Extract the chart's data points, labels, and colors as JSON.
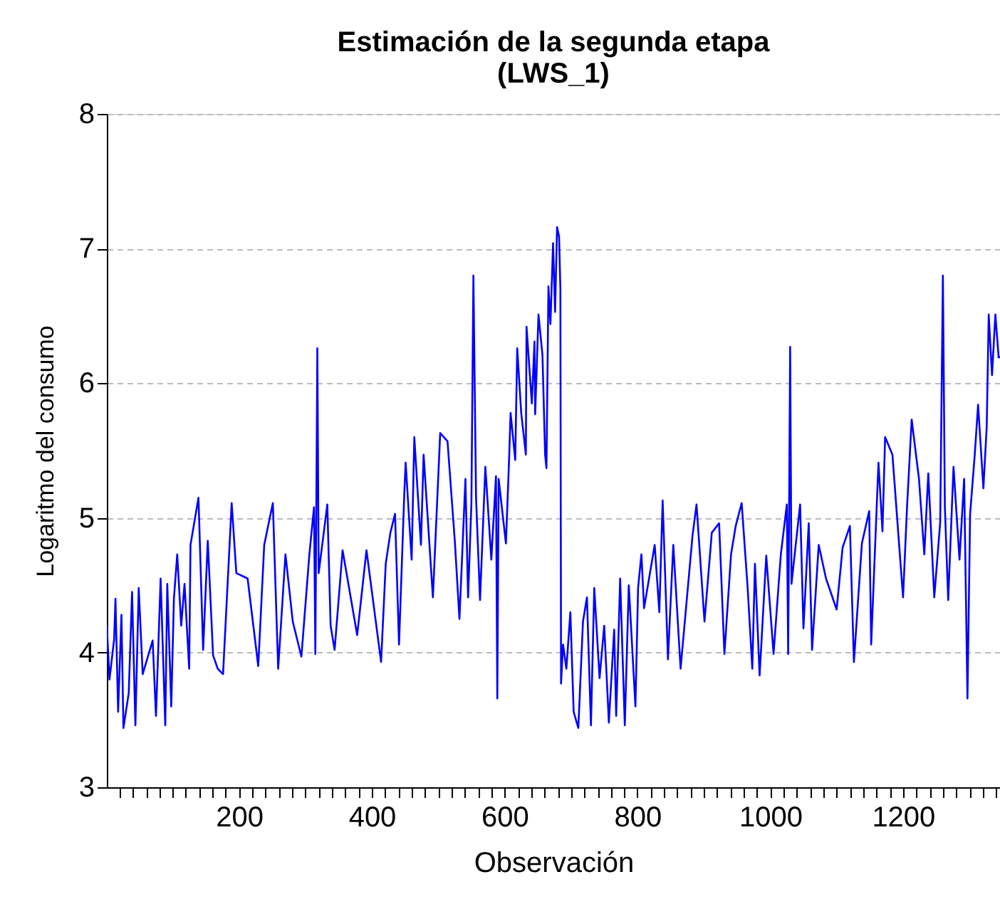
{
  "chart_data": {
    "type": "line",
    "title": "Estimación de la segunda etapa\n(LWS_1)",
    "xlabel": "Observación",
    "ylabel": "Logaritmo del consumo",
    "xlim": [
      1,
      1346
    ],
    "ylim": [
      3,
      8
    ],
    "xticks": [
      {
        "value": 20,
        "label": null
      },
      {
        "value": 40,
        "label": null
      },
      {
        "value": 60,
        "label": null
      },
      {
        "value": 80,
        "label": null
      },
      {
        "value": 100,
        "label": null
      },
      {
        "value": 120,
        "label": null
      },
      {
        "value": 140,
        "label": null
      },
      {
        "value": 160,
        "label": null
      },
      {
        "value": 180,
        "label": null
      },
      200,
      {
        "value": 220,
        "label": null
      },
      {
        "value": 240,
        "label": null
      },
      {
        "value": 260,
        "label": null
      },
      {
        "value": 280,
        "label": null
      },
      {
        "value": 300,
        "label": null
      },
      {
        "value": 320,
        "label": null
      },
      {
        "value": 340,
        "label": null
      },
      {
        "value": 360,
        "label": null
      },
      {
        "value": 380,
        "label": null
      },
      400,
      {
        "value": 420,
        "label": null
      },
      {
        "value": 440,
        "label": null
      },
      {
        "value": 460,
        "label": null
      },
      {
        "value": 480,
        "label": null
      },
      {
        "value": 500,
        "label": null
      },
      {
        "value": 520,
        "label": null
      },
      {
        "value": 540,
        "label": null
      },
      {
        "value": 560,
        "label": null
      },
      {
        "value": 580,
        "label": null
      },
      600,
      {
        "value": 620,
        "label": null
      },
      {
        "value": 640,
        "label": null
      },
      {
        "value": 660,
        "label": null
      },
      {
        "value": 680,
        "label": null
      },
      {
        "value": 700,
        "label": null
      },
      {
        "value": 720,
        "label": null
      },
      {
        "value": 740,
        "label": null
      },
      {
        "value": 760,
        "label": null
      },
      {
        "value": 780,
        "label": null
      },
      800,
      {
        "value": 820,
        "label": null
      },
      {
        "value": 840,
        "label": null
      },
      {
        "value": 860,
        "label": null
      },
      {
        "value": 880,
        "label": null
      },
      {
        "value": 900,
        "label": null
      },
      {
        "value": 920,
        "label": null
      },
      {
        "value": 940,
        "label": null
      },
      {
        "value": 960,
        "label": null
      },
      {
        "value": 980,
        "label": null
      },
      1000,
      {
        "value": 1020,
        "label": null
      },
      {
        "value": 1040,
        "label": null
      },
      {
        "value": 1060,
        "label": null
      },
      {
        "value": 1080,
        "label": null
      },
      {
        "value": 1100,
        "label": null
      },
      {
        "value": 1120,
        "label": null
      },
      {
        "value": 1140,
        "label": null
      },
      {
        "value": 1160,
        "label": null
      },
      {
        "value": 1180,
        "label": null
      },
      1200,
      {
        "value": 1220,
        "label": null
      },
      {
        "value": 1240,
        "label": null
      },
      {
        "value": 1260,
        "label": null
      },
      {
        "value": 1280,
        "label": null
      },
      {
        "value": 1300,
        "label": null
      },
      {
        "value": 1320,
        "label": null
      },
      {
        "value": 1340,
        "label": null
      }
    ],
    "yticks": [
      3,
      4,
      5,
      6,
      7,
      8
    ],
    "grid": "y",
    "legend": false,
    "marker": "none",
    "line_style": "solid",
    "x": [
      1,
      5,
      12,
      14,
      18,
      23,
      26,
      34,
      39,
      44,
      49,
      55,
      70,
      75,
      82,
      89,
      92,
      98,
      102,
      107,
      113,
      118,
      125,
      127,
      139,
      146,
      153,
      161,
      168,
      176,
      189,
      196,
      213,
      229,
      238,
      251,
      259,
      270,
      281,
      294,
      306,
      313,
      315,
      318,
      320,
      333,
      338,
      344,
      356,
      378,
      392,
      414,
      421,
      428,
      435,
      441,
      449,
      451,
      460,
      464,
      474,
      478,
      492,
      503,
      514,
      525,
      532,
      541,
      545,
      550,
      553,
      557,
      563,
      571,
      580,
      587,
      589,
      591,
      602,
      607,
      609,
      616,
      619,
      625,
      632,
      633,
      641,
      645,
      646,
      651,
      657,
      661,
      663,
      666,
      669,
      673,
      676,
      679,
      682,
      684,
      685,
      688,
      693,
      699,
      704,
      711,
      718,
      724,
      730,
      735,
      743,
      750,
      757,
      765,
      768,
      774,
      781,
      787,
      797,
      801,
      806,
      810,
      826,
      833,
      838,
      846,
      854,
      865,
      883,
      889,
      901,
      912,
      923,
      931,
      941,
      948,
      957,
      966,
      973,
      977,
      984,
      994,
      1005,
      1016,
      1025,
      1027,
      1030,
      1032,
      1045,
      1050,
      1058,
      1063,
      1073,
      1084,
      1100,
      1109,
      1120,
      1126,
      1138,
      1149,
      1152,
      1163,
      1169,
      1173,
      1184,
      1192,
      1200,
      1206,
      1213,
      1224,
      1232,
      1238,
      1247,
      1256,
      1260,
      1263,
      1268,
      1276,
      1285,
      1292,
      1297,
      1301,
      1308,
      1313,
      1321,
      1326,
      1329,
      1334,
      1339,
      1344,
      1346
    ],
    "series": [
      {
        "color": "#0000ff",
        "values": [
          4.2,
          3.8,
          4.1,
          4.4,
          3.56,
          4.28,
          3.44,
          3.7,
          4.45,
          3.46,
          4.48,
          3.84,
          4.09,
          3.53,
          4.55,
          3.46,
          4.51,
          3.6,
          4.4,
          4.73,
          4.2,
          4.51,
          3.88,
          4.8,
          5.15,
          4.02,
          4.83,
          3.98,
          3.88,
          3.84,
          5.11,
          4.59,
          4.55,
          3.9,
          4.8,
          5.11,
          3.88,
          4.73,
          4.23,
          3.97,
          4.73,
          5.08,
          3.99,
          6.26,
          4.59,
          5.1,
          4.2,
          4.02,
          4.76,
          4.13,
          4.76,
          3.93,
          4.66,
          4.89,
          5.03,
          4.06,
          5.19,
          5.41,
          4.69,
          5.6,
          4.8,
          5.47,
          4.41,
          5.63,
          5.57,
          4.83,
          4.25,
          5.29,
          4.41,
          5.11,
          6.8,
          5.15,
          4.39,
          5.38,
          4.69,
          5.31,
          3.66,
          5.29,
          4.81,
          5.47,
          5.78,
          5.43,
          6.26,
          5.78,
          5.47,
          6.42,
          5.85,
          6.31,
          5.77,
          6.51,
          6.21,
          5.47,
          5.37,
          6.72,
          6.44,
          7.04,
          6.53,
          7.16,
          7.09,
          6.7,
          3.77,
          4.06,
          3.88,
          4.3,
          3.56,
          3.44,
          4.23,
          4.41,
          3.46,
          4.48,
          3.81,
          4.2,
          3.48,
          4.17,
          3.53,
          4.55,
          3.46,
          4.5,
          3.6,
          4.48,
          4.73,
          4.33,
          4.8,
          4.3,
          5.13,
          3.95,
          4.8,
          3.88,
          4.87,
          5.1,
          4.23,
          4.89,
          4.96,
          3.99,
          4.73,
          4.94,
          5.11,
          4.48,
          3.88,
          4.66,
          3.83,
          4.72,
          3.99,
          4.73,
          5.1,
          3.99,
          6.27,
          4.51,
          5.1,
          4.18,
          4.96,
          4.02,
          4.8,
          4.55,
          4.32,
          4.78,
          4.94,
          3.93,
          4.81,
          5.05,
          4.06,
          5.41,
          4.9,
          5.6,
          5.47,
          4.94,
          4.41,
          5.08,
          5.73,
          5.29,
          4.73,
          5.33,
          4.41,
          4.97,
          6.8,
          5.08,
          4.39,
          5.38,
          4.69,
          5.29,
          3.66,
          5.03,
          5.47,
          5.84,
          5.22,
          5.68,
          6.51,
          6.06,
          6.51,
          6.19,
          6.2
        ]
      }
    ]
  }
}
